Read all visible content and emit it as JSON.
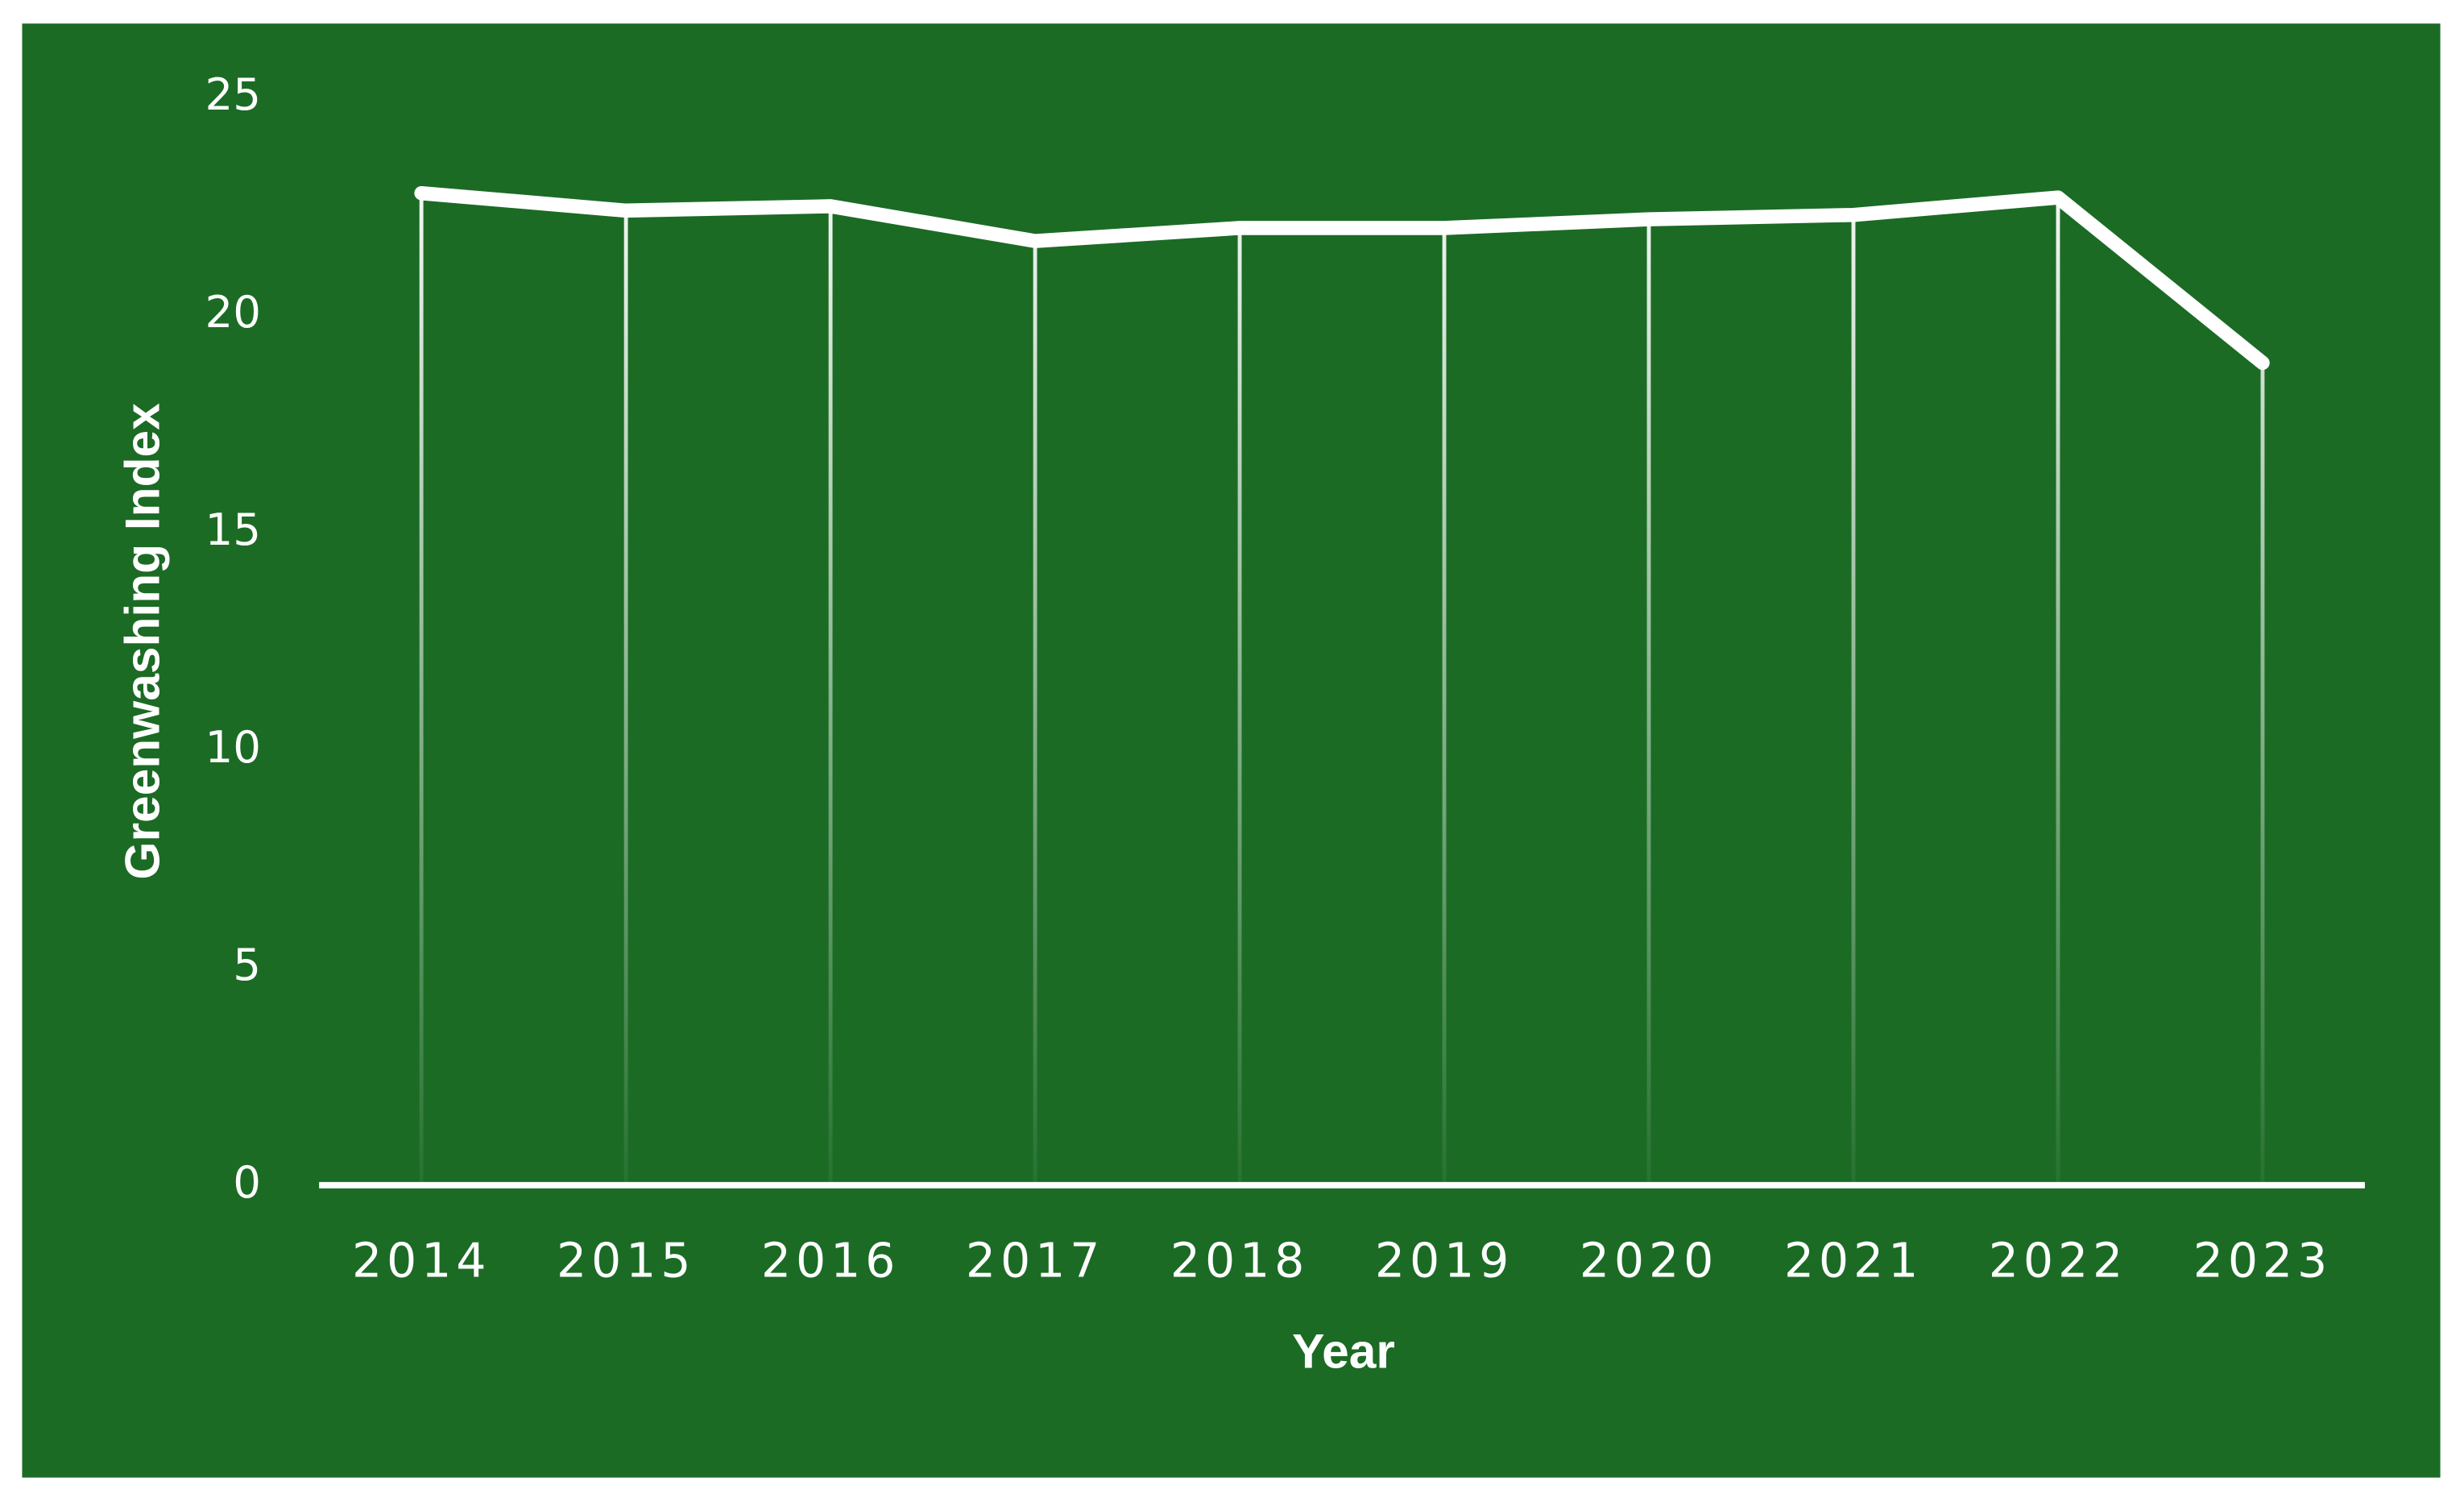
{
  "chart_data": {
    "type": "line",
    "x_label": "Year",
    "y_label": "Greenwashing Index",
    "categories": [
      "2014",
      "2015",
      "2016",
      "2017",
      "2018",
      "2019",
      "2020",
      "2021",
      "2022",
      "2023"
    ],
    "series": [
      {
        "color": "#ffffff",
        "values": [
          22.8,
          22.4,
          22.5,
          21.7,
          22.0,
          22.0,
          22.2,
          22.3,
          22.7,
          18.9
        ]
      }
    ],
    "ylim": [
      0,
      25
    ],
    "yticks": [
      0,
      5,
      10,
      15,
      20,
      25
    ],
    "background": "#1b6b25",
    "drop_lines": true,
    "grid": false
  }
}
